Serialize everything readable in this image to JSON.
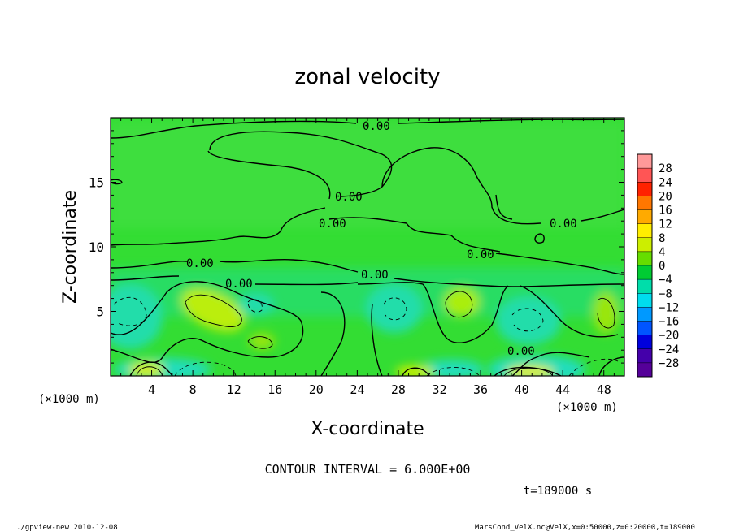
{
  "chart_data": {
    "type": "heatmap",
    "title": "zonal velocity",
    "xlabel": "X-coordinate",
    "ylabel": "Z-coordinate",
    "x_unit": "(×1000 m)",
    "y_unit": "(×1000 m)",
    "xlim": [
      0,
      50
    ],
    "ylim": [
      0,
      20
    ],
    "x_ticks": [
      "4",
      "8",
      "12",
      "16",
      "20",
      "24",
      "28",
      "32",
      "36",
      "40",
      "44",
      "48"
    ],
    "x_tick_values": [
      4,
      8,
      12,
      16,
      20,
      24,
      28,
      32,
      36,
      40,
      44,
      48
    ],
    "y_ticks": [
      "5",
      "10",
      "15"
    ],
    "y_tick_values": [
      5,
      10,
      15
    ],
    "colorbar": {
      "labels": [
        "28",
        "24",
        "20",
        "16",
        "12",
        "8",
        "4",
        "0",
        "−4",
        "−8",
        "−12",
        "−16",
        "−20",
        "−24",
        "−28"
      ],
      "colors": [
        "#ff9999",
        "#ff5555",
        "#ff2200",
        "#ff7700",
        "#ffaa00",
        "#ffee00",
        "#ccee00",
        "#66dd00",
        "#00cc33",
        "#00ddaa",
        "#00ddee",
        "#0099ff",
        "#0055ff",
        "#0000dd",
        "#4400aa",
        "#550099"
      ]
    },
    "contour_label": "0.00",
    "contour_interval_text": "CONTOUR INTERVAL = 6.000E+00",
    "time_text": "t=189000 s",
    "grid": false
  },
  "footer": {
    "left": "./gpview-new  2010-12-08",
    "right": "MarsCond_VelX.nc@VelX,x=0:50000,z=0:20000,t=189000"
  }
}
